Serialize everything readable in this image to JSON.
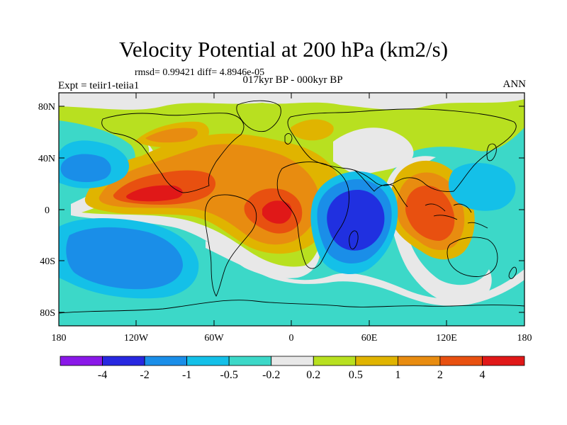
{
  "header": {
    "title": "Velocity Potential at 200 hPa (km2/s)",
    "stats": "rmsd= 0.99421 diff= 4.8946e-05",
    "subtitle": "017kyr BP - 000kyr BP",
    "experiment": "Expt = teiir1-teiia1",
    "season": "ANN"
  },
  "map": {
    "projection": "cylindrical equidistant",
    "lon_range": [
      -180,
      180
    ],
    "lat_range": [
      -90,
      90
    ],
    "lat_ticks": [
      "80N",
      "40N",
      "0",
      "40S",
      "80S"
    ],
    "lon_ticks": [
      "180",
      "120W",
      "60W",
      "0",
      "60E",
      "120E",
      "180"
    ],
    "background_level": "0.2 to 0.5",
    "features": [
      {
        "name": "cyan band",
        "level": "-0.5 to -0.2",
        "color": "#3cd8c8"
      },
      {
        "name": "north pacific low",
        "level": "-1 to -0.5",
        "color": "#18b8e0"
      },
      {
        "name": "south pacific low",
        "level": "-2 to -1",
        "color": "#1a8ee8"
      },
      {
        "name": "indian ocean low",
        "level": "-4 to -2",
        "color": "#2030e0"
      },
      {
        "name": "atlantic high",
        "level": "2 to 4",
        "color": "#e84010"
      },
      {
        "name": "maritime continent high",
        "level": "2 to 4",
        "color": "#e84010"
      }
    ]
  },
  "colorbar": {
    "labels": [
      "-4",
      "-2",
      "-1",
      "-0.5",
      "-0.2",
      "0.2",
      "0.5",
      "1",
      "2",
      "4"
    ],
    "colors": [
      "#8a18e8",
      "#2828e0",
      "#1a8ee8",
      "#14c0e8",
      "#3cd8c8",
      "#e8e8e8",
      "#b8e020",
      "#e0b400",
      "#e88c10",
      "#e85010",
      "#e01818"
    ]
  }
}
